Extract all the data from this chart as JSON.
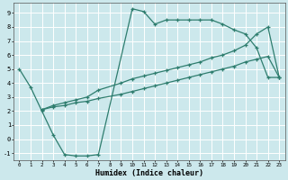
{
  "xlabel": "Humidex (Indice chaleur)",
  "xlim": [
    -0.5,
    23.5
  ],
  "ylim": [
    -1.5,
    9.7
  ],
  "xticks": [
    0,
    1,
    2,
    3,
    4,
    5,
    6,
    7,
    8,
    9,
    10,
    11,
    12,
    13,
    14,
    15,
    16,
    17,
    18,
    19,
    20,
    21,
    22,
    23
  ],
  "yticks": [
    -1,
    0,
    1,
    2,
    3,
    4,
    5,
    6,
    7,
    8,
    9
  ],
  "background_color": "#cce8ec",
  "line_color": "#2e7d6e",
  "grid_color": "#ffffff",
  "s1_x": [
    0,
    1,
    2,
    3,
    4,
    5,
    6,
    7,
    10,
    11,
    12,
    13,
    14,
    15,
    16,
    17,
    18,
    19,
    20,
    21,
    22,
    23
  ],
  "s1_y": [
    5.0,
    3.7,
    2.0,
    0.3,
    -1.1,
    -1.2,
    -1.2,
    -1.1,
    9.3,
    9.1,
    8.2,
    8.5,
    8.5,
    8.5,
    8.5,
    8.5,
    8.2,
    7.8,
    7.5,
    6.5,
    4.4,
    4.4
  ],
  "s2_x": [
    2,
    3,
    4,
    5,
    6,
    7,
    9,
    10,
    11,
    12,
    13,
    14,
    15,
    16,
    17,
    18,
    19,
    20,
    21,
    22,
    23
  ],
  "s2_y": [
    2.1,
    2.4,
    2.6,
    2.8,
    3.0,
    3.5,
    4.0,
    4.3,
    4.5,
    4.7,
    4.9,
    5.1,
    5.3,
    5.5,
    5.8,
    6.0,
    6.3,
    6.7,
    7.5,
    8.0,
    4.4
  ],
  "s3_x": [
    2,
    3,
    4,
    5,
    6,
    7,
    9,
    10,
    11,
    12,
    13,
    14,
    15,
    16,
    17,
    18,
    19,
    20,
    21,
    22,
    23
  ],
  "s3_y": [
    2.1,
    2.3,
    2.4,
    2.6,
    2.7,
    2.9,
    3.2,
    3.4,
    3.6,
    3.8,
    4.0,
    4.2,
    4.4,
    4.6,
    4.8,
    5.0,
    5.2,
    5.5,
    5.7,
    5.9,
    4.4
  ]
}
